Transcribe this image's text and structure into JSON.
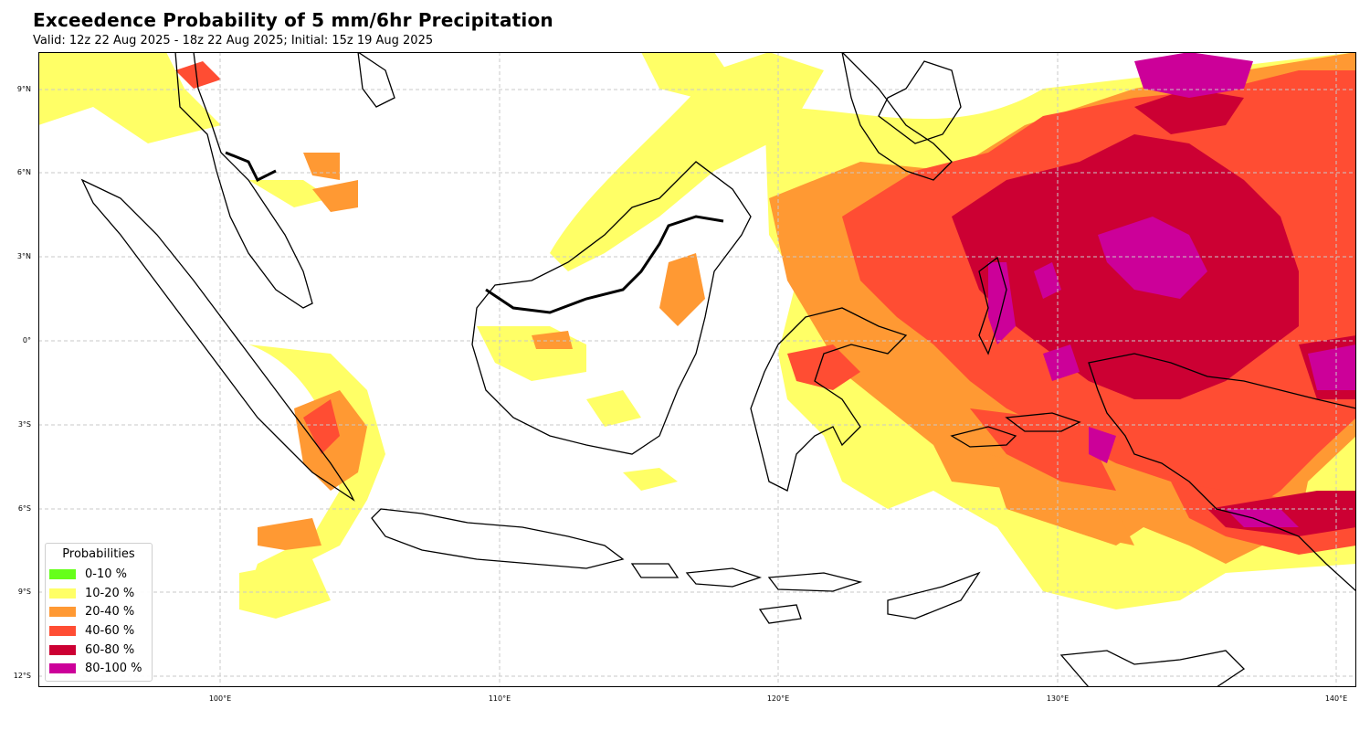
{
  "title": "Exceedence Probability of 5 mm/6hr Precipitation",
  "subtitle": "Valid: 12z 22 Aug 2025 - 18z 22 Aug 2025; Initial: 15z 19 Aug 2025",
  "lat_labels": [
    "9°N",
    "6°N",
    "3°N",
    "0°",
    "3°S",
    "6°S",
    "9°S",
    "12°S"
  ],
  "lon_labels": [
    "100°E",
    "110°E",
    "120°E",
    "130°E",
    "140°E"
  ],
  "legend": {
    "title": "Probabilities",
    "items": [
      {
        "label": "0-10 %",
        "color": "#66ff1a"
      },
      {
        "label": "10-20 %",
        "color": "#ffff66"
      },
      {
        "label": "20-40 %",
        "color": "#ff9933"
      },
      {
        "label": "40-60 %",
        "color": "#ff4d33"
      },
      {
        "label": "60-80 %",
        "color": "#cc0033"
      },
      {
        "label": "80-100 %",
        "color": "#cc0099"
      }
    ]
  }
}
